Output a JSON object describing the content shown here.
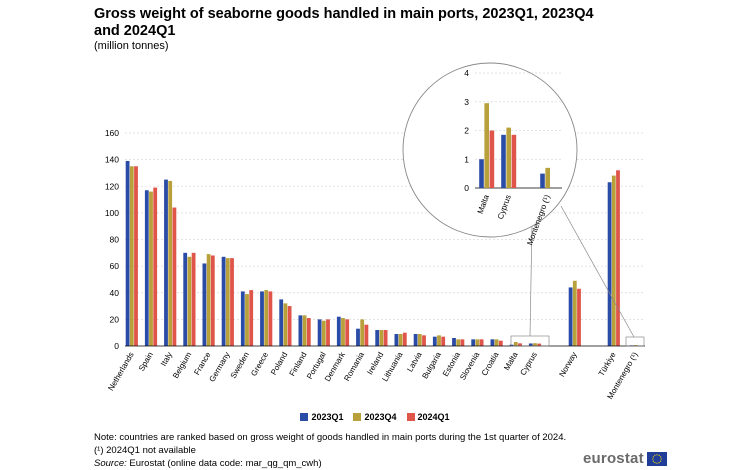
{
  "chart_data": {
    "type": "bar",
    "title": "Gross weight of seaborne goods handled in main ports, 2023Q1, 2023Q4 and 2024Q1",
    "unit_label": "(million tonnes)",
    "ylim": [
      0,
      160
    ],
    "yticks": [
      0,
      20,
      40,
      60,
      80,
      100,
      120,
      140,
      160
    ],
    "grid": true,
    "legend_position": "bottom",
    "categories": [
      "Netherlands",
      "Spain",
      "Italy",
      "Belgium",
      "France",
      "Germany",
      "Sweden",
      "Greece",
      "Poland",
      "Finland",
      "Portugal",
      "Denmark",
      "Romania",
      "Ireland",
      "Lithuania",
      "Latvia",
      "Bulgaria",
      "Estonia",
      "Slovenia",
      "Croatia",
      "Malta",
      "Cyprus",
      "Norway",
      "Türkiye",
      "Montenegro (¹)"
    ],
    "series": [
      {
        "name": "2023Q1",
        "color": "#2a4ba6",
        "values": [
          139,
          117,
          125,
          70,
          62,
          67,
          41,
          41,
          35,
          23,
          20,
          22,
          13,
          12,
          9,
          9,
          7,
          6,
          5,
          5,
          1,
          1.9,
          44,
          123,
          0.5
        ]
      },
      {
        "name": "2023Q4",
        "color": "#b8a13a",
        "values": [
          135,
          116,
          124,
          67,
          69,
          66,
          39,
          42,
          32,
          23,
          19,
          21,
          20,
          12,
          9,
          9,
          8,
          5,
          5,
          5,
          3,
          2.1,
          49,
          128,
          0.7
        ]
      },
      {
        "name": "2024Q1",
        "color": "#e0554a",
        "values": [
          135,
          119,
          104,
          70,
          68,
          66,
          42,
          41,
          30,
          21,
          20,
          20,
          16,
          12,
          10,
          8,
          7,
          5,
          5,
          4,
          2,
          1.8,
          43,
          132,
          null
        ]
      }
    ],
    "inset": {
      "categories": [
        "Malta",
        "Cyprus",
        "Montenegro (¹)"
      ],
      "ylim": [
        0,
        4
      ],
      "yticks": [
        0,
        1,
        2,
        3,
        4
      ],
      "series": [
        {
          "name": "2023Q1",
          "values": [
            1.0,
            1.85,
            0.5
          ]
        },
        {
          "name": "2023Q4",
          "values": [
            2.95,
            2.1,
            0.7
          ]
        },
        {
          "name": "2024Q1",
          "values": [
            2.0,
            1.85,
            null
          ]
        }
      ]
    }
  },
  "notes": {
    "note1": "Note: countries are ranked based on gross weight of goods handled in main ports during the 1st quarter of 2024.",
    "note2": "(¹) 2024Q1 not available",
    "source_label": "Source:",
    "source_text": " Eurostat (online data code: mar_qg_qm_cwh)"
  },
  "logo": {
    "text": "eurostat",
    "flag_color": "#1f3d99",
    "star_color": "#ffdd00"
  }
}
